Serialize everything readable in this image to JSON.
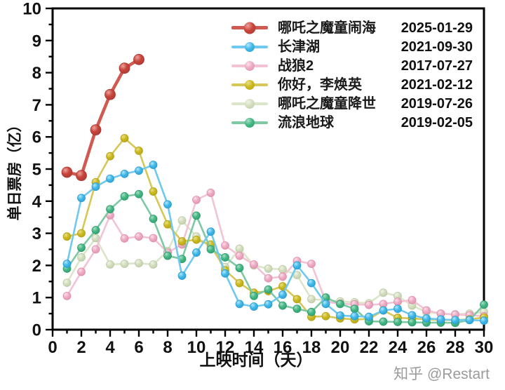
{
  "watermark": "知乎 @Restart",
  "axes": {
    "x_title": "上映时间（天）",
    "y_title": "单日票房（亿）",
    "x_min": 0,
    "x_max": 30,
    "x_major_step": 2,
    "x_minor_step": 1,
    "y_min": 0,
    "y_max": 10,
    "y_major_step": 1,
    "y_minor_step": 0.5,
    "x_tick_labels": [
      "0",
      "2",
      "4",
      "6",
      "8",
      "10",
      "12",
      "14",
      "16",
      "18",
      "20",
      "22",
      "24",
      "26",
      "28",
      "30"
    ],
    "y_tick_labels": [
      "0",
      "1",
      "2",
      "3",
      "4",
      "5",
      "6",
      "7",
      "8",
      "9",
      "10"
    ]
  },
  "chart_data": {
    "type": "line",
    "xlabel": "上映时间（天）",
    "ylabel": "单日票房（亿）",
    "xlim": [
      0,
      30
    ],
    "ylim": [
      0,
      10
    ],
    "grid": false,
    "legend_position": "top-right-inside",
    "draw_order": [
      4,
      2,
      3,
      5,
      1,
      0
    ],
    "series": [
      {
        "key": "nezha2",
        "name": "哪吒之魔童闹海",
        "date": "2025-01-29",
        "color_line": "#cf5a52",
        "color_marker": "#c7453c",
        "color_light": "#eda39c",
        "color_dark": "#a83830",
        "line_width": 4.5,
        "marker_r": 7.5,
        "big": true,
        "days": [
          1,
          2,
          3,
          4,
          5,
          6
        ],
        "values": [
          4.9,
          4.8,
          6.22,
          7.32,
          8.14,
          8.41
        ]
      },
      {
        "key": "changjinhu",
        "name": "长津湖",
        "date": "2021-09-30",
        "color_line": "#6fc9ee",
        "color_marker": "#41b9e9",
        "color_light": "#b5e6f9",
        "color_dark": "#2a9dd0",
        "line_width": 2.6,
        "marker_r": 5.5,
        "big": false,
        "days": [
          1,
          2,
          3,
          4,
          5,
          6,
          7,
          8,
          9,
          10,
          11,
          12,
          13,
          14,
          15,
          16,
          17,
          18,
          19,
          20,
          21,
          22,
          23,
          24,
          25,
          26,
          27,
          28,
          29,
          30
        ],
        "values": [
          2.05,
          4.1,
          4.45,
          4.7,
          4.85,
          4.95,
          5.13,
          3.9,
          1.68,
          2.4,
          3.05,
          1.75,
          0.8,
          0.72,
          0.79,
          1.09,
          2.0,
          1.45,
          0.8,
          0.44,
          0.42,
          0.4,
          0.6,
          0.65,
          0.45,
          0.35,
          0.32,
          0.3,
          0.3,
          0.28
        ]
      },
      {
        "key": "zhanlang2",
        "name": "战狼2",
        "date": "2017-07-27",
        "color_line": "#f2c3d4",
        "color_marker": "#eeabc4",
        "color_light": "#fbdfe9",
        "color_dark": "#dd8fae",
        "line_width": 2.6,
        "marker_r": 5.5,
        "big": false,
        "days": [
          1,
          2,
          3,
          4,
          5,
          6,
          7,
          8,
          9,
          10,
          11,
          12,
          13,
          14,
          15,
          16,
          17,
          18,
          19,
          20,
          21,
          22,
          23,
          24,
          25,
          26,
          27,
          28,
          29,
          30
        ],
        "values": [
          1.05,
          1.8,
          2.5,
          3.56,
          2.84,
          2.9,
          2.85,
          2.4,
          2.65,
          4.04,
          4.26,
          2.62,
          2.3,
          2.03,
          1.6,
          1.65,
          2.14,
          2.05,
          0.87,
          0.81,
          0.79,
          0.77,
          0.8,
          0.87,
          0.92,
          0.6,
          0.5,
          0.47,
          0.45,
          0.42
        ]
      },
      {
        "key": "lihuanying",
        "name": "你好，李焕英",
        "date": "2021-02-12",
        "color_line": "#d6c757",
        "color_marker": "#cbb91f",
        "color_light": "#e9e08a",
        "color_dark": "#b3a216",
        "line_width": 2.6,
        "marker_r": 5.5,
        "big": false,
        "days": [
          1,
          2,
          3,
          4,
          5,
          6,
          7,
          8,
          9,
          10,
          11,
          12,
          13,
          14,
          15,
          16,
          17,
          18,
          19,
          20,
          21,
          22,
          23,
          24,
          25,
          26,
          27,
          28,
          29,
          30
        ],
        "values": [
          2.9,
          3.0,
          4.59,
          5.4,
          5.96,
          5.57,
          4.3,
          3.28,
          2.75,
          2.8,
          2.65,
          1.85,
          1.45,
          1.15,
          1.2,
          1.35,
          0.95,
          0.4,
          0.42,
          0.35,
          0.32,
          0.33,
          0.6,
          0.37,
          0.35,
          0.32,
          0.3,
          0.3,
          0.32,
          0.38
        ]
      },
      {
        "key": "nezha1",
        "name": "哪吒之魔童降世",
        "date": "2019-07-26",
        "color_line": "#dce4ca",
        "color_marker": "#d3dec0",
        "color_light": "#f0f3e6",
        "color_dark": "#bccaa4",
        "line_width": 2.6,
        "marker_r": 5.5,
        "big": false,
        "days": [
          1,
          2,
          3,
          4,
          5,
          6,
          7,
          8,
          9,
          10,
          11,
          12,
          13,
          14,
          15,
          16,
          17,
          18,
          19,
          20,
          21,
          22,
          23,
          24,
          25,
          26,
          27,
          28,
          29,
          30
        ],
        "values": [
          1.46,
          2.25,
          2.85,
          2.03,
          2.05,
          2.07,
          2.03,
          2.45,
          3.4,
          2.9,
          2.55,
          1.95,
          2.52,
          2.0,
          1.9,
          1.88,
          1.7,
          0.95,
          0.92,
          0.88,
          0.85,
          0.82,
          1.15,
          1.05,
          0.75,
          0.55,
          0.5,
          0.48,
          0.5,
          0.55
        ]
      },
      {
        "key": "liulangdiqiu",
        "name": "流浪地球",
        "date": "2019-02-05",
        "color_line": "#7cc9a4",
        "color_marker": "#43b884",
        "color_light": "#a9ddc6",
        "color_dark": "#2f9c6b",
        "line_width": 2.6,
        "marker_r": 5.5,
        "big": false,
        "days": [
          1,
          2,
          3,
          4,
          5,
          6,
          7,
          8,
          9,
          10,
          11,
          12,
          13,
          14,
          15,
          16,
          17,
          18,
          19,
          20,
          21,
          22,
          23,
          24,
          25,
          26,
          27,
          28,
          29,
          30
        ],
        "values": [
          1.9,
          2.55,
          3.1,
          3.75,
          4.15,
          4.22,
          3.45,
          2.3,
          2.2,
          3.55,
          2.5,
          2.25,
          1.92,
          1.05,
          1.25,
          0.75,
          0.65,
          0.55,
          1.0,
          0.8,
          0.65,
          0.26,
          0.25,
          0.24,
          0.23,
          0.22,
          0.22,
          0.21,
          0.3,
          0.78
        ]
      }
    ]
  }
}
